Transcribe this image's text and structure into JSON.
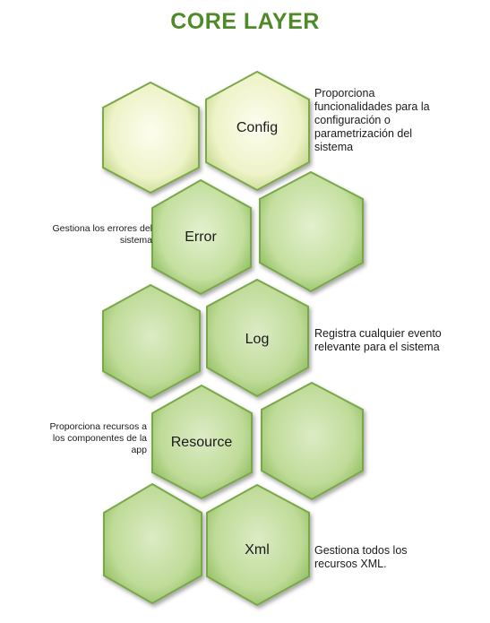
{
  "title": "CORE LAYER",
  "hexagons": [
    {
      "id": "h1",
      "label": ""
    },
    {
      "id": "h2",
      "label": "Config"
    },
    {
      "id": "h3",
      "label": "Error"
    },
    {
      "id": "h4",
      "label": ""
    },
    {
      "id": "h5",
      "label": ""
    },
    {
      "id": "h6",
      "label": "Log"
    },
    {
      "id": "h7",
      "label": "Resource"
    },
    {
      "id": "h8",
      "label": ""
    },
    {
      "id": "h9",
      "label": ""
    },
    {
      "id": "h10",
      "label": "Xml"
    }
  ],
  "descriptions": {
    "config": "Proporciona funcionalidades para la configuración o parametrización del sistema",
    "error": "Gestiona los errores del sistema",
    "log": "Registra cualquier evento relevante para el sistema",
    "resource": "Proporciona recursos a los componentes de la app",
    "xml": "Gestiona todos los recursos XML."
  },
  "colors": {
    "title": "#4f8a2a",
    "hex_light_center": "#fbfce8",
    "hex_light_edge": "#c9dc8f",
    "hex_green_center": "#d9ebbe",
    "hex_green_edge": "#8fbf5f",
    "hex_stroke": "#6f9c3c"
  }
}
